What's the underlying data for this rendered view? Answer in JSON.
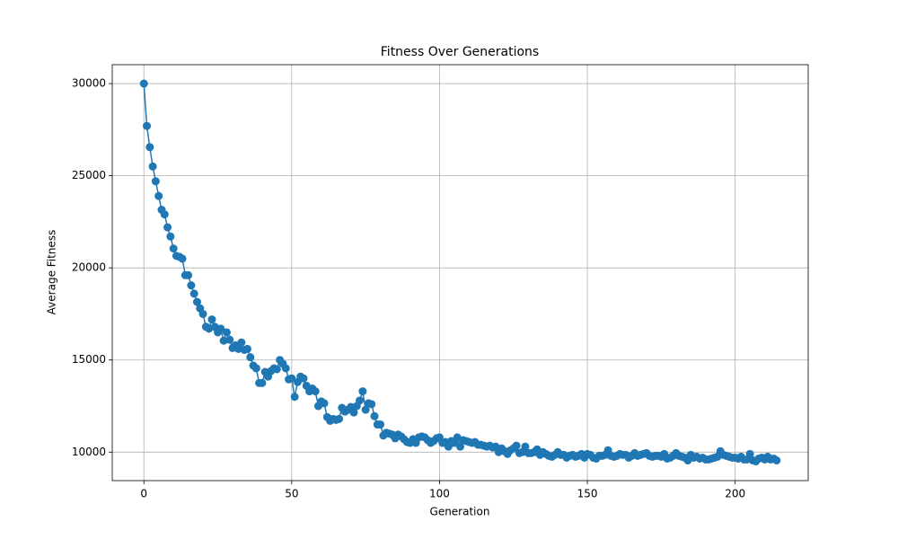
{
  "chart_data": {
    "type": "line",
    "title": "Fitness Over Generations",
    "xlabel": "Generation",
    "ylabel": "Average Fitness",
    "x": [
      0,
      1,
      2,
      3,
      4,
      5,
      6,
      7,
      8,
      9,
      10,
      11,
      12,
      13,
      14,
      15,
      16,
      17,
      18,
      19,
      20,
      21,
      22,
      23,
      24,
      25,
      26,
      27,
      28,
      29,
      30,
      31,
      32,
      33,
      34,
      35,
      36,
      37,
      38,
      39,
      40,
      41,
      42,
      43,
      44,
      45,
      46,
      47,
      48,
      49,
      50,
      51,
      52,
      53,
      54,
      55,
      56,
      57,
      58,
      59,
      60,
      61,
      62,
      63,
      64,
      65,
      66,
      67,
      68,
      69,
      70,
      71,
      72,
      73,
      74,
      75,
      76,
      77,
      78,
      79,
      80,
      81,
      82,
      83,
      84,
      85,
      86,
      87,
      88,
      89,
      90,
      91,
      92,
      93,
      94,
      95,
      96,
      97,
      98,
      99,
      100,
      101,
      102,
      103,
      104,
      105,
      106,
      107,
      108,
      109,
      110,
      111,
      112,
      113,
      114,
      115,
      116,
      117,
      118,
      119,
      120,
      121,
      122,
      123,
      124,
      125,
      126,
      127,
      128,
      129,
      130,
      131,
      132,
      133,
      134,
      135,
      136,
      137,
      138,
      139,
      140,
      141,
      142,
      143,
      144,
      145,
      146,
      147,
      148,
      149,
      150,
      151,
      152,
      153,
      154,
      155,
      156,
      157,
      158,
      159,
      160,
      161,
      162,
      163,
      164,
      165,
      166,
      167,
      168,
      169,
      170,
      171,
      172,
      173,
      174,
      175,
      176,
      177,
      178,
      179,
      180,
      181,
      182,
      183,
      184,
      185,
      186,
      187,
      188,
      189,
      190,
      191,
      192,
      193,
      194,
      195,
      196,
      197,
      198,
      199,
      200,
      201,
      202,
      203,
      204,
      205,
      206,
      207,
      208,
      209,
      210,
      211,
      212,
      213,
      214
    ],
    "series": [
      {
        "name": "Average Fitness",
        "color": "#1f77b4",
        "values": [
          30000,
          27700,
          26550,
          25500,
          24700,
          23900,
          23150,
          22900,
          22200,
          21700,
          21050,
          20650,
          20600,
          20500,
          19600,
          19600,
          19050,
          18600,
          18150,
          17800,
          17500,
          16800,
          16700,
          17200,
          16800,
          16500,
          16700,
          16050,
          16500,
          16100,
          15650,
          15800,
          15600,
          15950,
          15550,
          15600,
          15150,
          14700,
          14550,
          13750,
          13750,
          14350,
          14100,
          14400,
          14550,
          14500,
          15000,
          14800,
          14550,
          13950,
          14000,
          13000,
          13800,
          14100,
          14000,
          13600,
          13300,
          13450,
          13300,
          12500,
          12750,
          12650,
          11900,
          11700,
          11800,
          11750,
          11800,
          12400,
          12200,
          12300,
          12450,
          12150,
          12500,
          12800,
          13300,
          12300,
          12650,
          12600,
          11950,
          11500,
          11500,
          10900,
          11050,
          11000,
          10950,
          10750,
          10950,
          10850,
          10700,
          10550,
          10500,
          10700,
          10500,
          10800,
          10850,
          10800,
          10650,
          10500,
          10600,
          10750,
          10800,
          10500,
          10550,
          10300,
          10600,
          10500,
          10800,
          10300,
          10650,
          10600,
          10550,
          10500,
          10550,
          10400,
          10400,
          10350,
          10300,
          10350,
          10250,
          10300,
          10000,
          10200,
          10050,
          9900,
          10100,
          10200,
          10350,
          9950,
          10000,
          10300,
          9950,
          9950,
          10000,
          10150,
          9850,
          10000,
          9900,
          9800,
          9750,
          9850,
          10000,
          9850,
          9850,
          9700,
          9800,
          9850,
          9750,
          9800,
          9900,
          9700,
          9900,
          9850,
          9700,
          9650,
          9800,
          9800,
          9850,
          10100,
          9800,
          9750,
          9800,
          9900,
          9850,
          9850,
          9700,
          9800,
          9950,
          9800,
          9850,
          9900,
          9950,
          9800,
          9750,
          9800,
          9800,
          9750,
          9900,
          9650,
          9700,
          9800,
          9950,
          9800,
          9750,
          9700,
          9550,
          9850,
          9700,
          9750,
          9650,
          9700,
          9600,
          9600,
          9650,
          9700,
          9750,
          10050,
          9850,
          9800,
          9750,
          9700,
          9700,
          9650,
          9750,
          9600,
          9600,
          9900,
          9550,
          9500,
          9650,
          9700,
          9600,
          9750,
          9600,
          9650,
          9550
        ]
      }
    ],
    "xlim": [
      -10.7,
      224.7
    ],
    "ylim": [
      8454,
      31026
    ],
    "xticks": [
      0,
      50,
      100,
      150,
      200
    ],
    "yticks": [
      10000,
      15000,
      20000,
      25000,
      30000
    ],
    "grid": true
  }
}
